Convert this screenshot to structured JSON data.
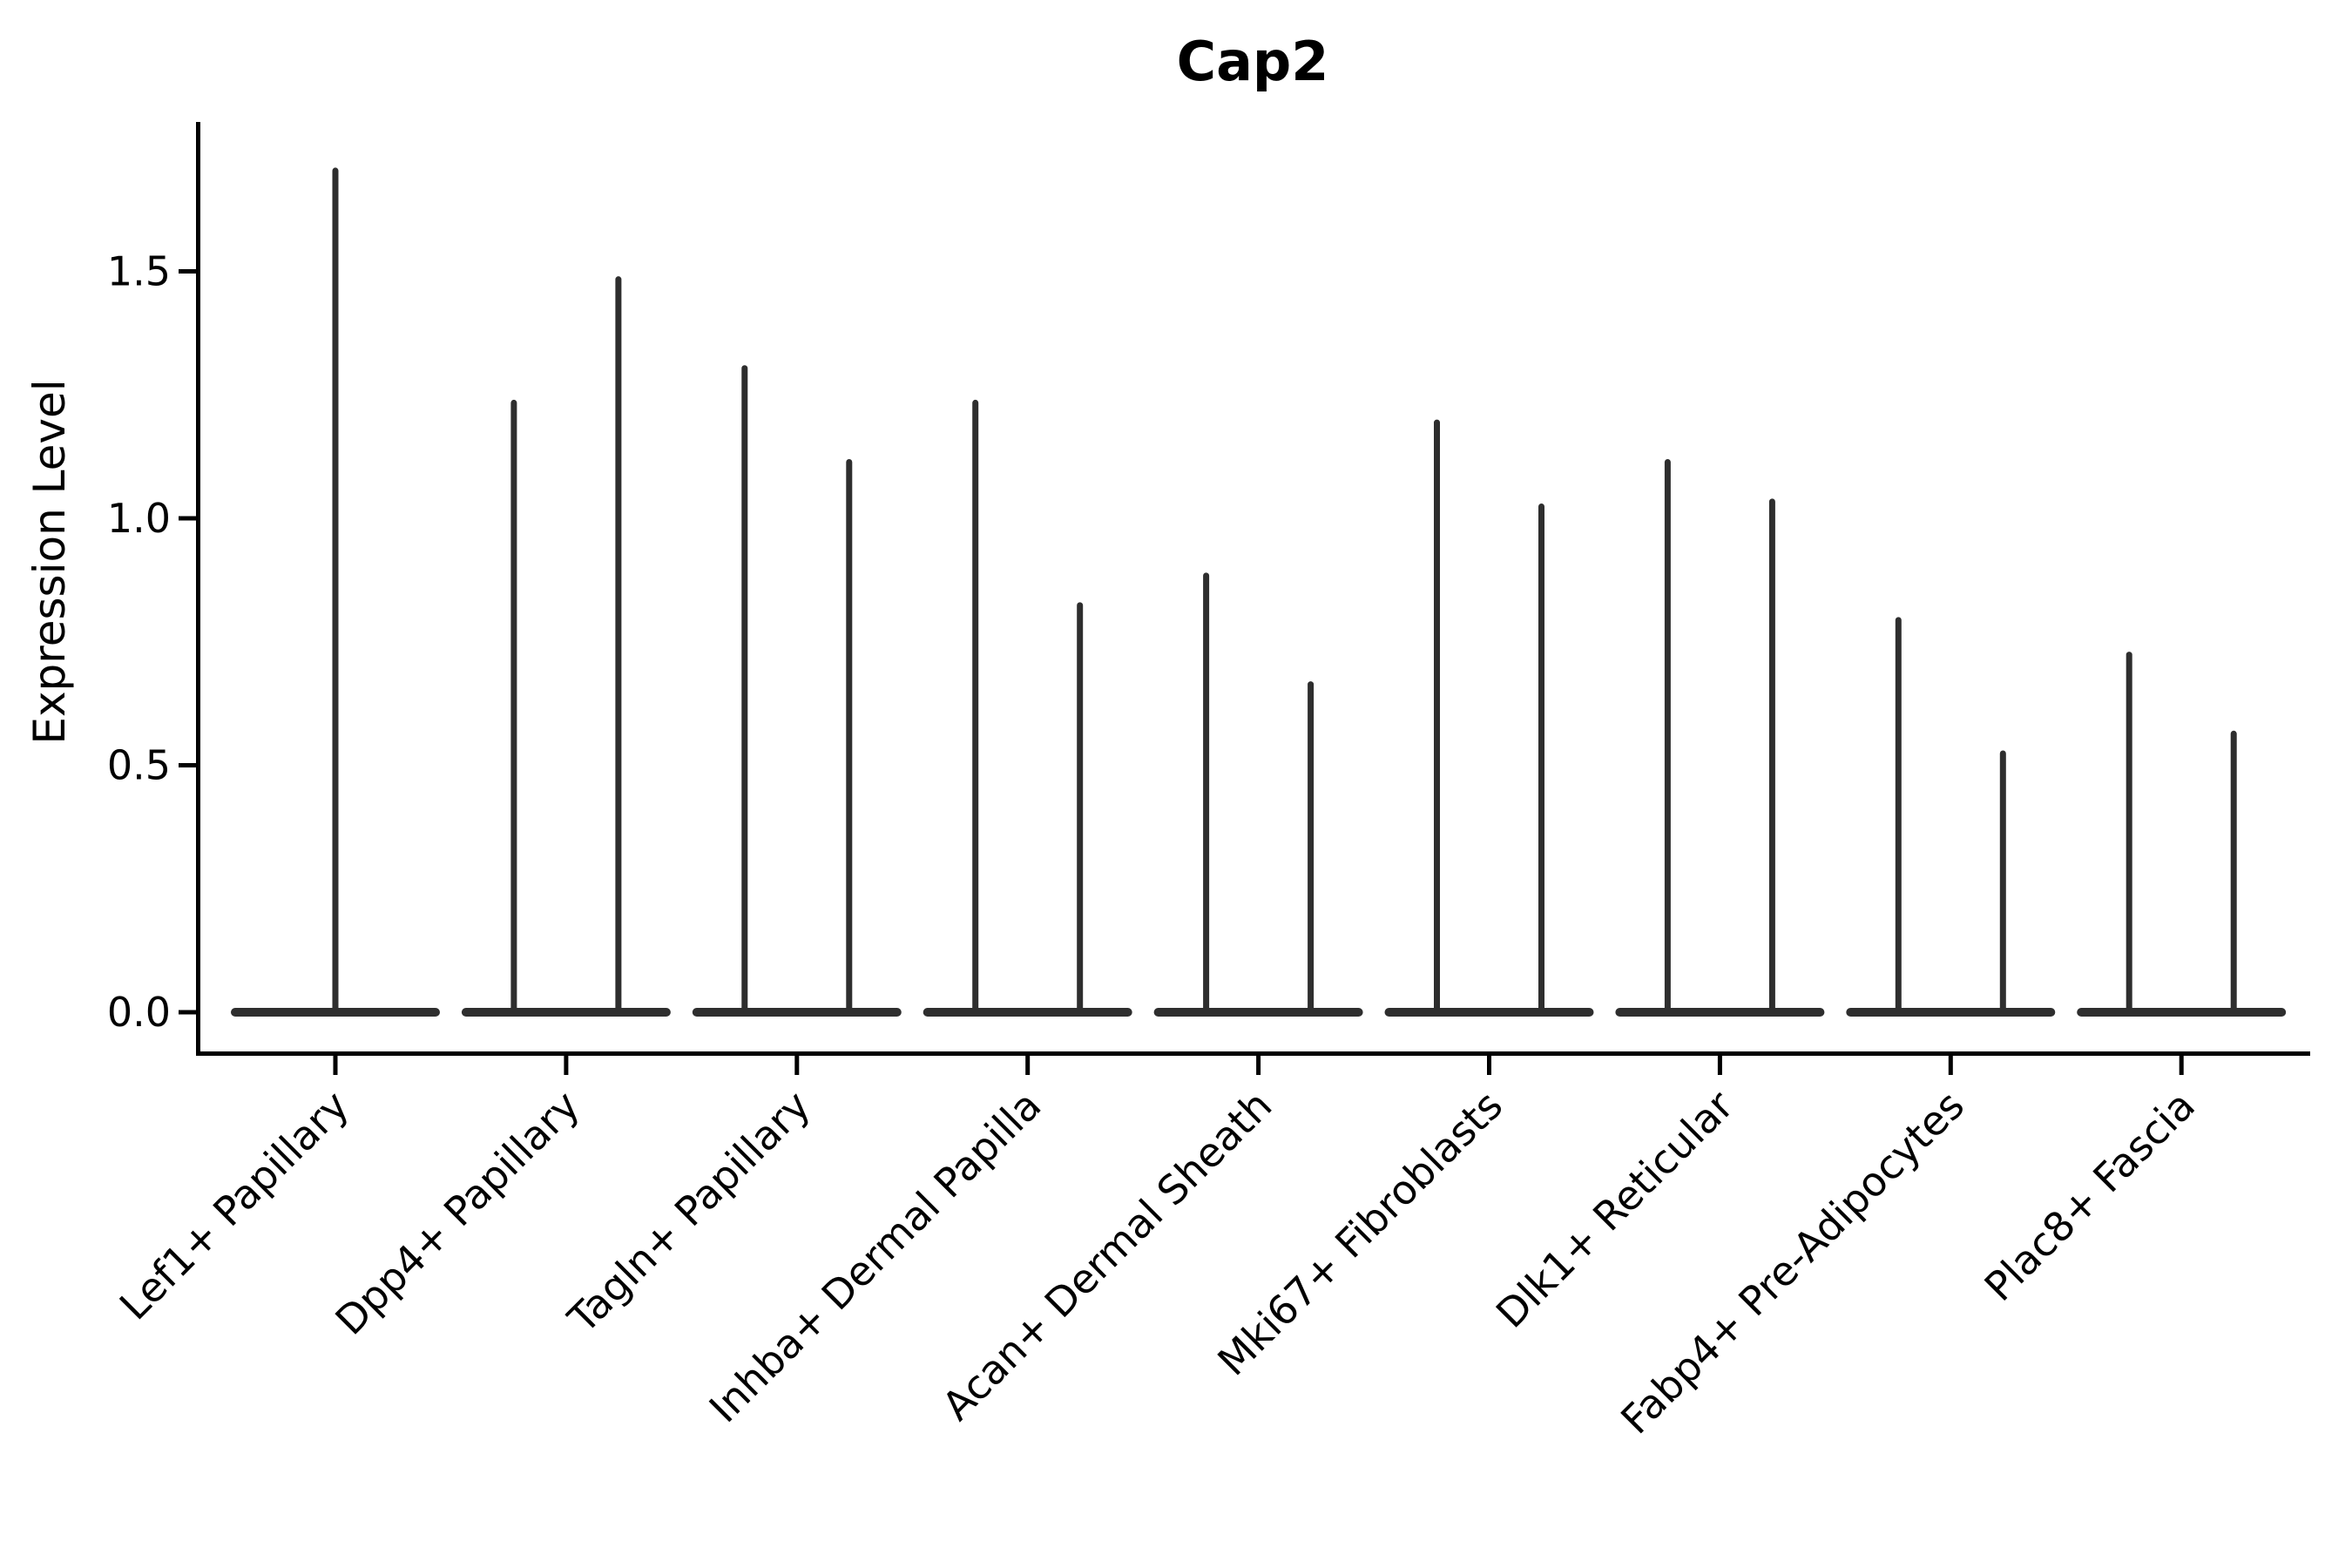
{
  "figure": {
    "title": "Cap2",
    "y_axis": {
      "label": "Expression Level",
      "tick_labels": [
        "0.0",
        "0.5",
        "1.0",
        "1.5"
      ]
    },
    "x_axis": {
      "label": "",
      "tick_labels": [
        "Lef1+ Papillary",
        "Dpp4+ Papillary",
        "Tagln+ Papillary",
        "Inhba+ Dermal Papilla",
        "Acan+ Dermal Sheath",
        "Mki67+ Fibroblasts",
        "Dlk1+ Reticular",
        "Fabp4+ Pre-Adipocytes",
        "Plac8+ Fascia"
      ]
    }
  },
  "chart_data": {
    "type": "violin",
    "title": "Cap2",
    "xlabel": "",
    "ylabel": "Expression Level",
    "ylim": [
      0,
      1.8
    ],
    "yticks": [
      0.0,
      0.5,
      1.0,
      1.5
    ],
    "ytick_labels": [
      "0.0",
      "0.5",
      "1.0",
      "1.5"
    ],
    "grid": false,
    "legend": "none",
    "categories": [
      "Lef1+ Papillary",
      "Dpp4+ Papillary",
      "Tagln+ Papillary",
      "Inhba+ Dermal Papilla",
      "Acan+ Dermal Sheath",
      "Mki67+ Fibroblasts",
      "Dlk1+ Reticular",
      "Fabp4+ Pre-Adipocytes",
      "Plac8+ Fascia"
    ],
    "groups": [
      {
        "category": "Lef1+ Papillary",
        "bulk_value": 0.0,
        "max_values": [
          1.71
        ]
      },
      {
        "category": "Dpp4+ Papillary",
        "bulk_value": 0.0,
        "max_values": [
          1.24,
          1.49
        ]
      },
      {
        "category": "Tagln+ Papillary",
        "bulk_value": 0.0,
        "max_values": [
          1.31,
          1.12
        ]
      },
      {
        "category": "Inhba+ Dermal Papilla",
        "bulk_value": 0.0,
        "max_values": [
          1.24,
          0.83
        ]
      },
      {
        "category": "Acan+ Dermal Sheath",
        "bulk_value": 0.0,
        "max_values": [
          0.89,
          0.67
        ]
      },
      {
        "category": "Mki67+ Fibroblasts",
        "bulk_value": 0.0,
        "max_values": [
          1.2,
          1.03
        ]
      },
      {
        "category": "Dlk1+ Reticular",
        "bulk_value": 0.0,
        "max_values": [
          1.12,
          1.04
        ]
      },
      {
        "category": "Fabp4+ Pre-Adipocytes",
        "bulk_value": 0.0,
        "max_values": [
          0.8,
          0.53
        ]
      },
      {
        "category": "Plac8+ Fascia",
        "bulk_value": 0.0,
        "max_values": [
          0.73,
          0.57
        ]
      }
    ],
    "shape_note": "Each violin is an extremely narrow distribution: a wide flat body at expression 0 with a thin vertical spike reaching the listed maximum expression value.",
    "colors": {
      "violin_fill": "#2e2e2e",
      "axis": "#000000",
      "text": "#000000",
      "background": "#ffffff"
    }
  }
}
